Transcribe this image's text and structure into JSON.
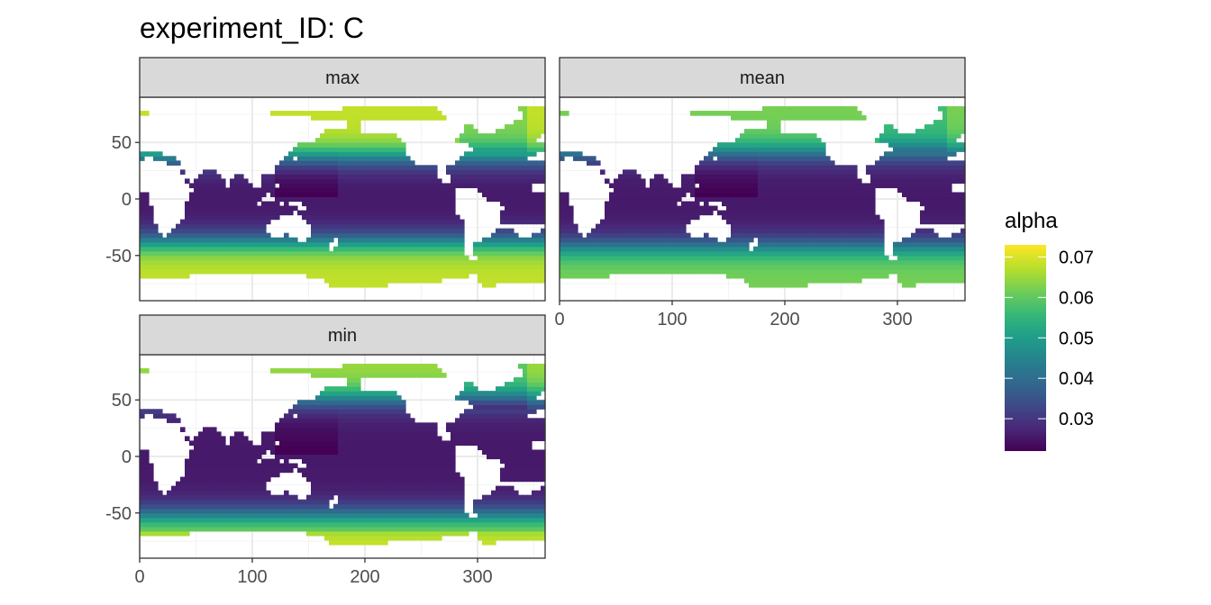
{
  "chart_data": {
    "type": "heatmap",
    "title": "experiment_ID: C",
    "facets": [
      {
        "label": "max",
        "show_x_ticks": false,
        "show_y_ticks": true
      },
      {
        "label": "mean",
        "show_x_ticks": true,
        "show_y_ticks": false
      },
      {
        "label": "min",
        "show_x_ticks": true,
        "show_y_ticks": true
      }
    ],
    "xlim": [
      0,
      360
    ],
    "ylim": [
      -90,
      90
    ],
    "x_ticks": [
      0,
      100,
      200,
      300
    ],
    "x_tick_labels": [
      "0",
      "100",
      "200",
      "300"
    ],
    "y_ticks": [
      -50,
      0,
      50
    ],
    "y_tick_labels": [
      "-50",
      "0",
      "50"
    ],
    "grid": true,
    "legend": {
      "title": "alpha",
      "position": "right",
      "range": [
        0.022,
        0.073
      ],
      "ticks": [
        0.03,
        0.04,
        0.05,
        0.06,
        0.07
      ],
      "tick_labels": [
        "0.03",
        "0.04",
        "0.05",
        "0.06",
        "0.07"
      ]
    },
    "colors": {
      "palette": [
        "#440154",
        "#482878",
        "#3E4A89",
        "#31688E",
        "#26828E",
        "#1F9E89",
        "#35B779",
        "#6DCD59",
        "#B4DE2C",
        "#FDE725"
      ],
      "land": "#ffffff",
      "strip_fill": "#d9d9d9",
      "grid": "#ebebeb"
    }
  }
}
